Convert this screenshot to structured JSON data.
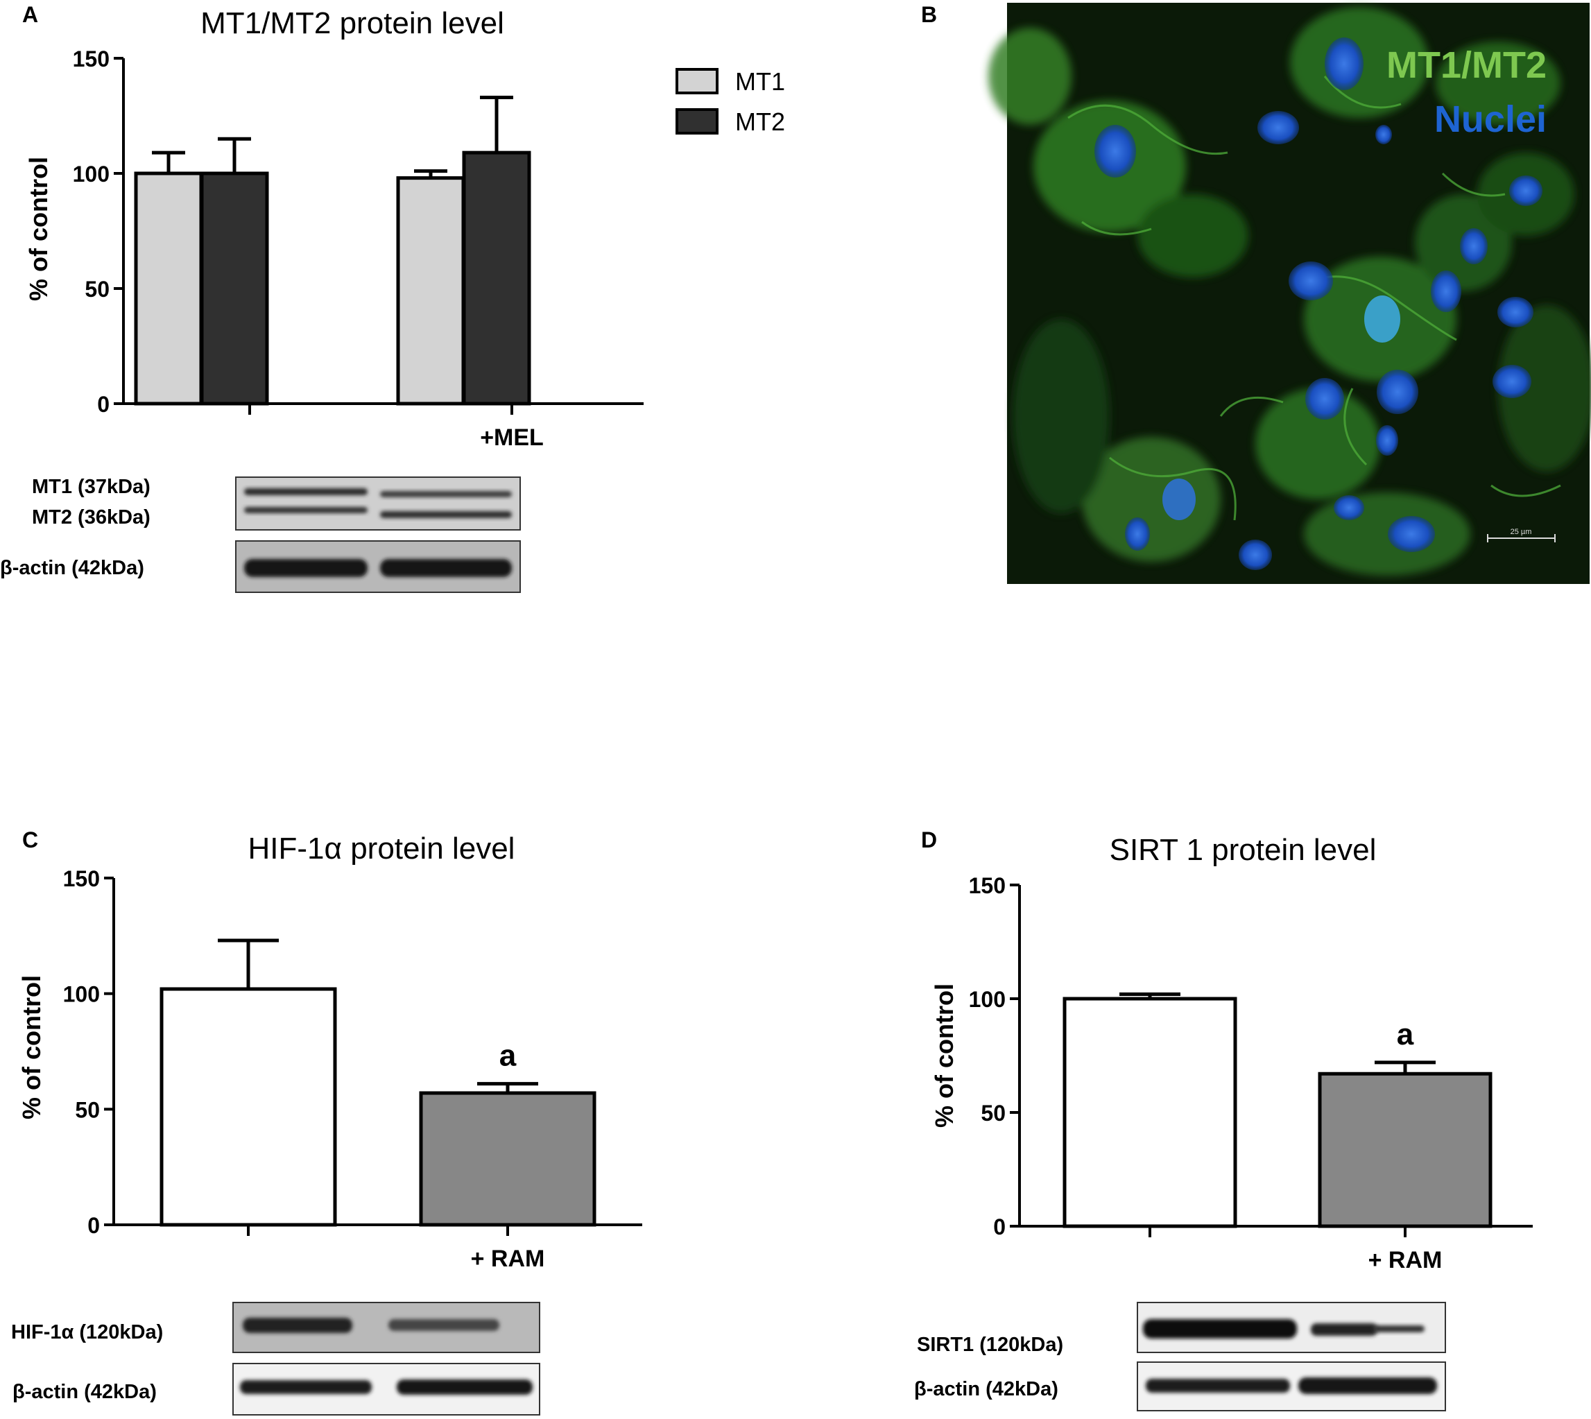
{
  "panels": {
    "a": {
      "letter": "A"
    },
    "b": {
      "letter": "B",
      "label_green": "MT1/MT2",
      "label_blue": "Nuclei",
      "scale_bar": "25 µm"
    },
    "c": {
      "letter": "C"
    },
    "d": {
      "letter": "D"
    }
  },
  "blots": {
    "a": {
      "mt1": "MT1 (37kDa)",
      "mt2": "MT2 (36kDa)",
      "actin": "β-actin (42kDa)"
    },
    "c": {
      "target": "HIF-1α (120kDa)",
      "actin": "β-actin (42kDa)"
    },
    "d": {
      "target": "SIRT1 (120kDa)",
      "actin": "β-actin (42kDa)"
    }
  },
  "colors": {
    "mt1": "#d3d3d3",
    "mt2": "#303030",
    "control": "#ffffff",
    "treated": "#878787",
    "fluor_green": "#7ec850",
    "fluor_blue": "#1e64d2"
  },
  "chart_data": [
    {
      "id": "A",
      "type": "bar",
      "title": "MT1/MT2 protein level",
      "ylabel": "% of control",
      "ylim": [
        0,
        150
      ],
      "yticks": [
        0,
        50,
        100,
        150
      ],
      "categories": [
        "",
        "+MEL"
      ],
      "series": [
        {
          "name": "MT1",
          "values": [
            100,
            98
          ],
          "errors": [
            9,
            3
          ]
        },
        {
          "name": "MT2",
          "values": [
            100,
            109
          ],
          "errors": [
            15,
            24
          ]
        }
      ],
      "legend": "top-right"
    },
    {
      "id": "C",
      "type": "bar",
      "title": "HIF-1α protein level",
      "ylabel": "% of control",
      "ylim": [
        0,
        150
      ],
      "yticks": [
        0,
        50,
        100,
        150
      ],
      "categories": [
        "",
        "+ RAM"
      ],
      "values": [
        102,
        57
      ],
      "errors": [
        21,
        4
      ],
      "annotations": [
        "",
        "a"
      ]
    },
    {
      "id": "D",
      "type": "bar",
      "title": "SIRT 1 protein level",
      "ylabel": "% of control",
      "ylim": [
        0,
        150
      ],
      "yticks": [
        0,
        50,
        100,
        150
      ],
      "categories": [
        "",
        "+ RAM"
      ],
      "values": [
        100,
        67
      ],
      "errors": [
        2,
        5
      ],
      "annotations": [
        "",
        "a"
      ]
    }
  ]
}
